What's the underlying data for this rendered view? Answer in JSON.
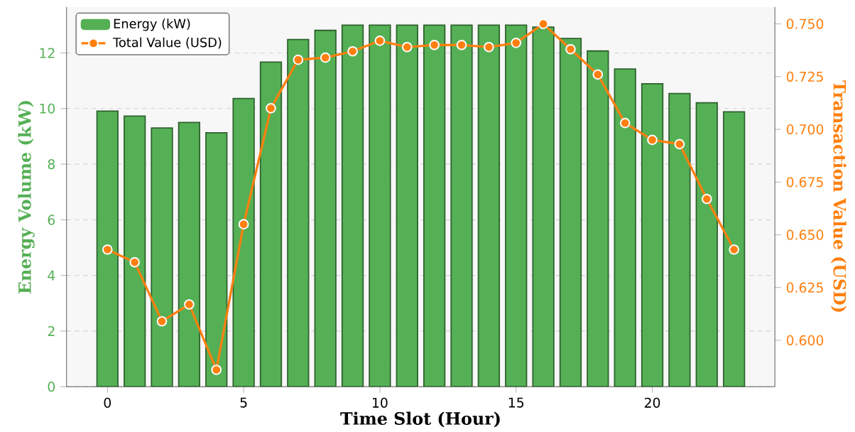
{
  "chart_data": {
    "type": "bar",
    "xlabel": "Time Slot (Hour)",
    "ylabel": "Energy Volume (kW)",
    "y2label": "Transaction Value (USD)",
    "x": [
      0,
      1,
      2,
      3,
      4,
      5,
      6,
      7,
      8,
      9,
      10,
      11,
      12,
      13,
      14,
      15,
      16,
      17,
      18,
      19,
      20,
      21,
      22,
      23
    ],
    "series": [
      {
        "name": "Energy (kW)",
        "color": "#55b055",
        "values": [
          9.91,
          9.73,
          9.3,
          9.5,
          9.13,
          10.36,
          11.67,
          12.48,
          12.81,
          13.0,
          13.0,
          13.0,
          13.0,
          13.0,
          13.0,
          13.0,
          12.93,
          12.52,
          12.07,
          11.42,
          10.89,
          10.54,
          10.21,
          9.88
        ]
      },
      {
        "name": "Total Value (USD)",
        "type": "line",
        "axis": "y2",
        "color": "#ff7f0e",
        "values": [
          0.643,
          0.637,
          0.609,
          0.617,
          0.586,
          0.655,
          0.71,
          0.733,
          0.734,
          0.737,
          0.742,
          0.739,
          0.74,
          0.74,
          0.739,
          0.741,
          0.75,
          0.738,
          0.726,
          0.703,
          0.695,
          0.693,
          0.667,
          0.643
        ]
      }
    ],
    "xlim": [
      -1.5,
      24.5
    ],
    "xticks": [
      0,
      5,
      10,
      15,
      20
    ],
    "ylim": [
      0,
      13.65
    ],
    "yticks": [
      0,
      2,
      4,
      6,
      8,
      10,
      12
    ],
    "y2lim": [
      0.578,
      0.758
    ],
    "y2ticks": [
      {
        "value": 0.6,
        "label": "0.600"
      },
      {
        "value": 0.625,
        "label": "0.625"
      },
      {
        "value": 0.65,
        "label": "0.650"
      },
      {
        "value": 0.675,
        "label": "0.675"
      },
      {
        "value": 0.7,
        "label": "0.700"
      },
      {
        "value": 0.725,
        "label": "0.725"
      },
      {
        "value": 0.75,
        "label": "0.750"
      }
    ],
    "grid": "y",
    "legend": "top left",
    "marker": "circle",
    "line_style": "solid"
  }
}
